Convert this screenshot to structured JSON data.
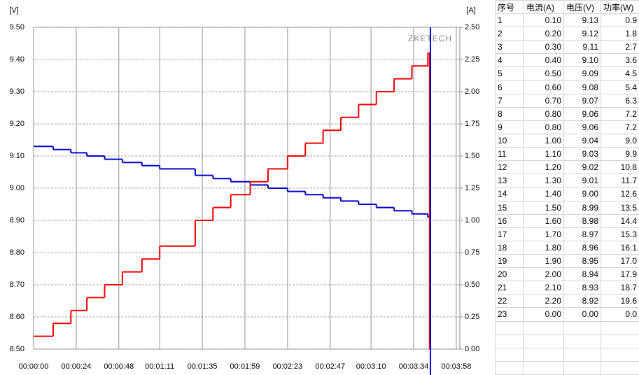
{
  "chart_data": {
    "type": "step",
    "y_unit": "[V]",
    "y2_unit": "[A]",
    "watermark": "ZKETECH",
    "x": [
      0,
      11,
      21,
      30,
      40,
      50,
      61,
      71,
      91,
      101,
      111,
      122,
      132,
      143,
      153,
      163,
      173,
      183,
      193,
      203,
      213,
      222,
      223
    ],
    "series": [
      {
        "name": "电压(V)",
        "color": "#0000cc",
        "axis": "y",
        "values": [
          9.13,
          9.12,
          9.11,
          9.1,
          9.09,
          9.08,
          9.07,
          9.06,
          9.04,
          9.03,
          9.02,
          9.01,
          9.0,
          8.99,
          8.98,
          8.97,
          8.96,
          8.95,
          8.94,
          8.93,
          8.92,
          8.91,
          8.91
        ]
      },
      {
        "name": "电流(A)",
        "color": "#ee0000",
        "axis": "y2",
        "values": [
          0.1,
          0.2,
          0.3,
          0.4,
          0.5,
          0.6,
          0.7,
          0.8,
          1.0,
          1.1,
          1.2,
          1.3,
          1.4,
          1.5,
          1.6,
          1.7,
          1.8,
          1.9,
          2.0,
          2.1,
          2.2,
          2.3,
          0
        ]
      }
    ],
    "xlim": [
      0,
      240
    ],
    "xticks": [
      {
        "value": 0,
        "label": "00:00:00"
      },
      {
        "value": 24,
        "label": "00:00:24"
      },
      {
        "value": 48,
        "label": "00:00:48"
      },
      {
        "value": 71,
        "label": "00:01:11"
      },
      {
        "value": 95,
        "label": "00:01:35"
      },
      {
        "value": 119,
        "label": "00:01:59"
      },
      {
        "value": 143,
        "label": "00:02:23"
      },
      {
        "value": 167,
        "label": "00:02:47"
      },
      {
        "value": 190,
        "label": "00:03:10"
      },
      {
        "value": 214,
        "label": "00:03:34"
      },
      {
        "value": 238,
        "label": "00:03:58"
      }
    ],
    "ylim": [
      8.5,
      9.5
    ],
    "yticks": [
      {
        "value": 8.5,
        "label": "8.50"
      },
      {
        "value": 8.6,
        "label": "8.60"
      },
      {
        "value": 8.7,
        "label": "8.70"
      },
      {
        "value": 8.8,
        "label": "8.80"
      },
      {
        "value": 8.9,
        "label": "8.90"
      },
      {
        "value": 9.0,
        "label": "9.00"
      },
      {
        "value": 9.1,
        "label": "9.10"
      },
      {
        "value": 9.2,
        "label": "9.20"
      },
      {
        "value": 9.3,
        "label": "9.30"
      },
      {
        "value": 9.4,
        "label": "9.40"
      },
      {
        "value": 9.5,
        "label": "9.50"
      }
    ],
    "y2lim": [
      0,
      2.5
    ],
    "y2ticks": [
      {
        "value": 0,
        "label": "0.00"
      },
      {
        "value": 0.25,
        "label": "0.25"
      },
      {
        "value": 0.5,
        "label": "0.50"
      },
      {
        "value": 0.75,
        "label": "0.75"
      },
      {
        "value": 1.0,
        "label": "1.00"
      },
      {
        "value": 1.25,
        "label": "1.25"
      },
      {
        "value": 1.5,
        "label": "1.50"
      },
      {
        "value": 1.75,
        "label": "1.75"
      },
      {
        "value": 2.0,
        "label": "2.00"
      },
      {
        "value": 2.25,
        "label": "2.25"
      },
      {
        "value": 2.5,
        "label": "2.50"
      }
    ],
    "grid": true
  },
  "table": {
    "columns": [
      "序号",
      "电流(A)",
      "电压(V)",
      "功率(W)"
    ],
    "rows": [
      [
        "1",
        "0.10",
        "9.13",
        "0.9"
      ],
      [
        "2",
        "0.20",
        "9.12",
        "1.8"
      ],
      [
        "3",
        "0.30",
        "9.11",
        "2.7"
      ],
      [
        "4",
        "0.40",
        "9.10",
        "3.6"
      ],
      [
        "5",
        "0.50",
        "9.09",
        "4.5"
      ],
      [
        "6",
        "0.60",
        "9.08",
        "5.4"
      ],
      [
        "7",
        "0.70",
        "9.07",
        "6.3"
      ],
      [
        "8",
        "0.80",
        "9.06",
        "7.2"
      ],
      [
        "9",
        "0.80",
        "9.06",
        "7.2"
      ],
      [
        "10",
        "1.00",
        "9.04",
        "9.0"
      ],
      [
        "11",
        "1.10",
        "9.03",
        "9.9"
      ],
      [
        "12",
        "1.20",
        "9.02",
        "10.8"
      ],
      [
        "13",
        "1.30",
        "9.01",
        "11.7"
      ],
      [
        "14",
        "1.40",
        "9.00",
        "12.6"
      ],
      [
        "15",
        "1.50",
        "8.99",
        "13.5"
      ],
      [
        "16",
        "1.60",
        "8.98",
        "14.4"
      ],
      [
        "17",
        "1.70",
        "8.97",
        "15.3"
      ],
      [
        "18",
        "1.80",
        "8.96",
        "16.1"
      ],
      [
        "19",
        "1.90",
        "8.95",
        "17.0"
      ],
      [
        "20",
        "2.00",
        "8.94",
        "17.9"
      ],
      [
        "21",
        "2.10",
        "8.93",
        "18.7"
      ],
      [
        "22",
        "2.20",
        "8.92",
        "19.6"
      ],
      [
        "23",
        "0.00",
        "0.00",
        "0.0"
      ]
    ]
  }
}
